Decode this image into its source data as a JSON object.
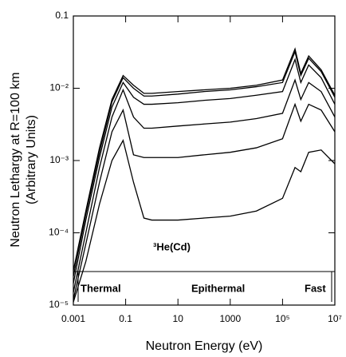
{
  "chart_data": {
    "type": "line",
    "xlabel": "Neutron Energy (eV)",
    "ylabel": [
      "Neutron Lethargy at R=100 km",
      "(Arbitrary Units)"
    ],
    "annotations": [
      "³He(Cd)",
      "Thermal",
      "Epithermal",
      "Fast"
    ],
    "xscale": "log",
    "yscale": "log",
    "xlim": [
      0.001,
      10000000
    ],
    "ylim": [
      1e-05,
      0.1
    ],
    "xticks": [
      0.001,
      0.1,
      10,
      1000,
      {
        "value": 100000,
        "label": "10⁵"
      },
      {
        "value": 10000000,
        "label": "10⁷"
      }
    ],
    "yticks": [
      {
        "value": 1e-05,
        "label": "10⁻⁵"
      },
      {
        "value": 0.0001,
        "label": "10⁻⁴"
      },
      {
        "value": 0.001,
        "label": "10⁻³"
      },
      {
        "value": 0.01,
        "label": "10⁻²"
      },
      0.1
    ],
    "x": [
      0.001,
      0.003,
      0.01,
      0.03,
      0.08,
      0.2,
      0.5,
      1,
      10,
      100,
      1000,
      10000,
      100000,
      300000,
      500000,
      1000000,
      3000000,
      10000000
    ],
    "series": [
      {
        "color": "#000000",
        "values": [
          3e-05,
          0.0002,
          0.0015,
          0.007,
          0.015,
          0.011,
          0.0085,
          0.0085,
          0.009,
          0.0095,
          0.01,
          0.011,
          0.013,
          0.035,
          0.016,
          0.028,
          0.018,
          0.008
        ]
      },
      {
        "color": "#000000",
        "values": [
          2.5e-05,
          0.00018,
          0.0013,
          0.0065,
          0.014,
          0.01,
          0.0078,
          0.0078,
          0.0083,
          0.009,
          0.0095,
          0.0105,
          0.012,
          0.032,
          0.015,
          0.026,
          0.017,
          0.0075
        ]
      },
      {
        "color": "#000000",
        "values": [
          2e-05,
          0.00015,
          0.0011,
          0.0055,
          0.012,
          0.0075,
          0.006,
          0.006,
          0.0063,
          0.0068,
          0.0072,
          0.008,
          0.009,
          0.025,
          0.012,
          0.021,
          0.014,
          0.006
        ]
      },
      {
        "color": "#000000",
        "values": [
          1.5e-05,
          0.0001,
          0.0008,
          0.004,
          0.0095,
          0.004,
          0.0028,
          0.0028,
          0.003,
          0.0032,
          0.0034,
          0.0038,
          0.0045,
          0.013,
          0.007,
          0.012,
          0.009,
          0.004
        ]
      },
      {
        "color": "#000000",
        "values": [
          1.2e-05,
          7e-05,
          0.0005,
          0.0025,
          0.005,
          0.0012,
          0.0011,
          0.0011,
          0.0011,
          0.0012,
          0.0013,
          0.0015,
          0.002,
          0.006,
          0.0035,
          0.006,
          0.005,
          0.0025
        ]
      },
      {
        "color": "#000000",
        "values": [
          1.1e-05,
          4e-05,
          0.00025,
          0.001,
          0.0019,
          0.0005,
          0.00016,
          0.00015,
          0.00015,
          0.00016,
          0.00017,
          0.0002,
          0.0003,
          0.0008,
          0.0007,
          0.0013,
          0.0014,
          0.0009
        ]
      }
    ]
  }
}
